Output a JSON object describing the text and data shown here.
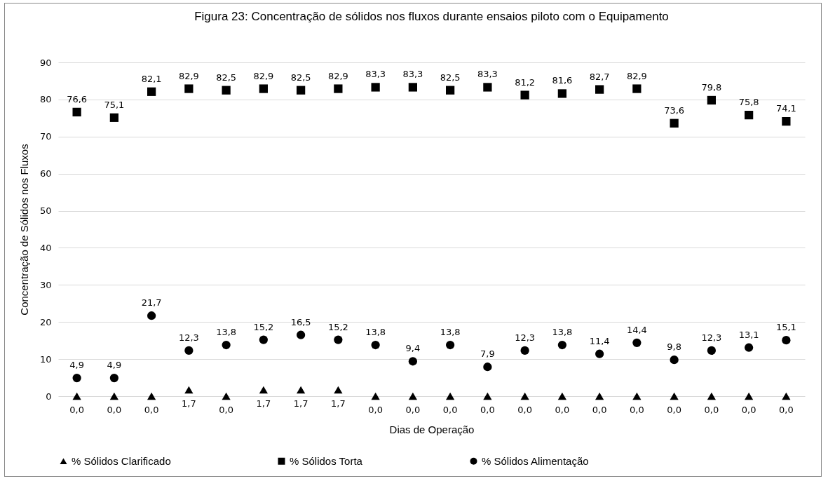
{
  "chart_data": {
    "type": "scatter",
    "title": "Figura 23: Concentração de sólidos nos fluxos durante ensaios piloto com o Equipamento",
    "xlabel": "Dias de Operação",
    "ylabel": "Concentração de Sólidos nos Fluxos",
    "categories": [
      null,
      null,
      null,
      null,
      null,
      null,
      null,
      null,
      null,
      null,
      null,
      null,
      null,
      null,
      null,
      null,
      null,
      null,
      null,
      null
    ],
    "series": [
      {
        "name": "% Sólidos Clarificado",
        "color": "#000000",
        "marker": "triangle",
        "values": [
          0.0,
          0.0,
          0.0,
          1.7,
          0.0,
          1.7,
          1.7,
          1.7,
          0.0,
          0.0,
          0.0,
          0.0,
          0.0,
          0.0,
          0.0,
          0.0,
          0.0,
          0.0,
          0.0,
          0.0
        ],
        "value_labels": [
          "0,0",
          "0,0",
          "0,0",
          "1,7",
          "0,0",
          "1,7",
          "1,7",
          "1,7",
          "0,0",
          "0,0",
          "0,0",
          "0,0",
          "0,0",
          "0,0",
          "0,0",
          "0,0",
          "0,0",
          "0,0",
          "0,0",
          "0,0"
        ]
      },
      {
        "name": "% Sólidos Torta",
        "color": "#000000",
        "marker": "square",
        "values": [
          76.6,
          75.1,
          82.1,
          82.9,
          82.5,
          82.9,
          82.5,
          82.9,
          83.3,
          83.3,
          82.5,
          83.3,
          81.2,
          81.6,
          82.7,
          82.9,
          73.6,
          79.8,
          75.8,
          74.1
        ],
        "value_labels": [
          "76,6",
          "75,1",
          "82,1",
          "82,9",
          "82,5",
          "82,9",
          "82,5",
          "82,9",
          "83,3",
          "83,3",
          "82,5",
          "83,3",
          "81,2",
          "81,6",
          "82,7",
          "82,9",
          "73,6",
          "79,8",
          "75,8",
          "74,1"
        ]
      },
      {
        "name": "% Sólidos Alimentação",
        "color": "#000000",
        "marker": "circle",
        "values": [
          4.9,
          4.9,
          21.7,
          12.3,
          13.8,
          15.2,
          16.5,
          15.2,
          13.8,
          9.4,
          13.8,
          7.9,
          12.3,
          13.8,
          11.4,
          14.4,
          9.8,
          12.3,
          13.1,
          15.1
        ],
        "value_labels": [
          "4,9",
          "4,9",
          "21,7",
          "12,3",
          "13,8",
          "15,2",
          "16,5",
          "15,2",
          "13,8",
          "9,4",
          "13,8",
          "7,9",
          "12,3",
          "13,8",
          "11,4",
          "14,4",
          "9,8",
          "12,3",
          "13,1",
          "15,1"
        ]
      }
    ],
    "ylim": [
      0,
      90
    ],
    "yticks": [
      0,
      10,
      20,
      30,
      40,
      50,
      60,
      70,
      80,
      90
    ],
    "grid": "y",
    "legend": "bottom"
  }
}
